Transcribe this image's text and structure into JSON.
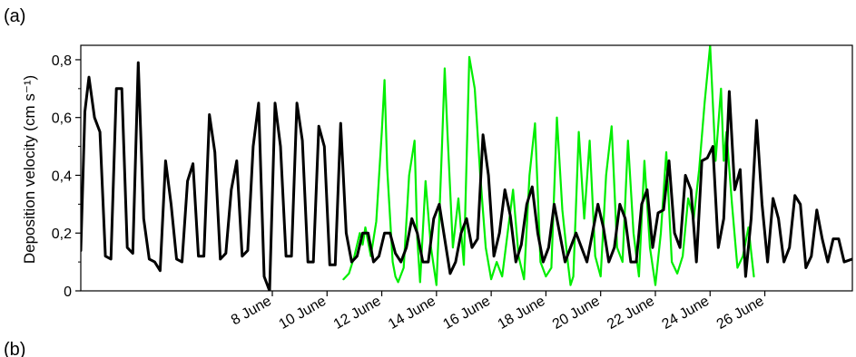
{
  "panel_labels": {
    "top": "(a)",
    "bottom": "(b)"
  },
  "chart_data": {
    "type": "line",
    "ylabel": "Deposition velocity (cm s⁻¹)",
    "ylim": [
      0,
      0.85
    ],
    "yticks": [
      {
        "value": 0.0,
        "label": "0"
      },
      {
        "value": 0.2,
        "label": "0,2"
      },
      {
        "value": 0.4,
        "label": "0,4"
      },
      {
        "value": 0.6,
        "label": "0,6"
      },
      {
        "value": 0.8,
        "label": "0,8"
      }
    ],
    "x_unit": "June (day of month)",
    "xlim": [
      1,
      29.2
    ],
    "xticks": [
      {
        "value": 8,
        "label": "8 June"
      },
      {
        "value": 10,
        "label": "10 June"
      },
      {
        "value": 12,
        "label": "12 June"
      },
      {
        "value": 14,
        "label": "14 June"
      },
      {
        "value": 16,
        "label": "16 June"
      },
      {
        "value": 18,
        "label": "18 June"
      },
      {
        "value": 20,
        "label": "20 June"
      },
      {
        "value": 22,
        "label": "22 June"
      },
      {
        "value": 24,
        "label": "24 June"
      },
      {
        "value": 26,
        "label": "26 June"
      }
    ],
    "grid": false,
    "legend": "none",
    "series": [
      {
        "color": "#00ee00",
        "x": [
          10.6,
          10.8,
          11.0,
          11.2,
          11.3,
          11.4,
          11.6,
          11.8,
          12.0,
          12.1,
          12.2,
          12.4,
          12.5,
          12.6,
          12.8,
          13.0,
          13.2,
          13.3,
          13.4,
          13.6,
          13.8,
          14.0,
          14.1,
          14.2,
          14.3,
          14.4,
          14.6,
          14.8,
          15.0,
          15.2,
          15.4,
          15.6,
          15.8,
          16.0,
          16.2,
          16.4,
          16.6,
          16.8,
          17.0,
          17.2,
          17.4,
          17.6,
          17.8,
          18.0,
          18.2,
          18.4,
          18.6,
          18.8,
          18.9,
          19.0,
          19.2,
          19.4,
          19.6,
          19.8,
          20.0,
          20.2,
          20.4,
          20.6,
          20.8,
          21.0,
          21.2,
          21.4,
          21.6,
          21.8,
          22.0,
          22.2,
          22.4,
          22.6,
          22.8,
          23.0,
          23.2,
          23.4,
          23.6,
          23.8,
          24.0,
          24.2,
          24.4,
          24.5,
          24.6,
          24.8,
          25.0,
          25.2,
          25.4,
          25.6
        ],
        "y": [
          0.04,
          0.06,
          0.12,
          0.2,
          0.16,
          0.22,
          0.12,
          0.24,
          0.55,
          0.73,
          0.42,
          0.1,
          0.05,
          0.03,
          0.08,
          0.4,
          0.52,
          0.18,
          0.03,
          0.38,
          0.15,
          0.02,
          0.25,
          0.5,
          0.77,
          0.55,
          0.15,
          0.32,
          0.09,
          0.81,
          0.7,
          0.4,
          0.15,
          0.04,
          0.1,
          0.05,
          0.2,
          0.35,
          0.12,
          0.04,
          0.4,
          0.58,
          0.1,
          0.05,
          0.08,
          0.6,
          0.28,
          0.1,
          0.02,
          0.05,
          0.55,
          0.25,
          0.52,
          0.12,
          0.05,
          0.4,
          0.57,
          0.15,
          0.1,
          0.52,
          0.2,
          0.05,
          0.45,
          0.15,
          0.02,
          0.2,
          0.48,
          0.1,
          0.06,
          0.12,
          0.32,
          0.25,
          0.42,
          0.65,
          0.85,
          0.45,
          0.7,
          0.45,
          0.55,
          0.3,
          0.08,
          0.12,
          0.22,
          0.05
        ]
      },
      {
        "color": "#000000",
        "x": [
          1.0,
          1.15,
          1.3,
          1.5,
          1.7,
          1.9,
          2.1,
          2.3,
          2.5,
          2.7,
          2.9,
          3.1,
          3.3,
          3.5,
          3.7,
          3.9,
          4.1,
          4.3,
          4.5,
          4.7,
          4.9,
          5.1,
          5.3,
          5.5,
          5.7,
          5.9,
          6.1,
          6.3,
          6.5,
          6.7,
          6.9,
          7.1,
          7.3,
          7.5,
          7.7,
          7.9,
          8.1,
          8.3,
          8.5,
          8.7,
          8.9,
          9.1,
          9.3,
          9.5,
          9.7,
          9.9,
          10.1,
          10.3,
          10.5,
          10.7,
          10.9,
          11.1,
          11.3,
          11.5,
          11.7,
          11.9,
          12.1,
          12.3,
          12.5,
          12.7,
          12.9,
          13.1,
          13.3,
          13.5,
          13.7,
          13.9,
          14.1,
          14.3,
          14.5,
          14.7,
          14.9,
          15.1,
          15.3,
          15.5,
          15.7,
          15.9,
          16.1,
          16.3,
          16.5,
          16.7,
          16.9,
          17.1,
          17.3,
          17.5,
          17.7,
          17.9,
          18.1,
          18.3,
          18.5,
          18.7,
          18.9,
          19.1,
          19.3,
          19.5,
          19.7,
          19.9,
          20.1,
          20.3,
          20.5,
          20.7,
          20.9,
          21.1,
          21.3,
          21.5,
          21.7,
          21.9,
          22.1,
          22.3,
          22.5,
          22.7,
          22.9,
          23.1,
          23.3,
          23.5,
          23.7,
          23.9,
          24.1,
          24.3,
          24.5,
          24.7,
          24.9,
          25.1,
          25.3,
          25.5,
          25.7,
          25.9,
          26.1,
          26.3,
          26.5,
          26.7,
          26.9,
          27.1,
          27.3,
          27.5,
          27.7,
          27.9,
          28.1,
          28.3,
          28.5,
          28.7,
          28.9,
          29.2
        ],
        "y": [
          0.14,
          0.62,
          0.74,
          0.6,
          0.55,
          0.12,
          0.11,
          0.7,
          0.7,
          0.15,
          0.13,
          0.79,
          0.25,
          0.11,
          0.1,
          0.07,
          0.45,
          0.3,
          0.11,
          0.1,
          0.38,
          0.44,
          0.12,
          0.12,
          0.61,
          0.48,
          0.11,
          0.13,
          0.35,
          0.45,
          0.12,
          0.14,
          0.5,
          0.65,
          0.05,
          0.0,
          0.65,
          0.5,
          0.12,
          0.12,
          0.65,
          0.52,
          0.1,
          0.1,
          0.57,
          0.5,
          0.09,
          0.09,
          0.58,
          0.2,
          0.1,
          0.12,
          0.2,
          0.2,
          0.1,
          0.12,
          0.2,
          0.2,
          0.13,
          0.1,
          0.15,
          0.25,
          0.2,
          0.1,
          0.1,
          0.25,
          0.3,
          0.18,
          0.06,
          0.1,
          0.2,
          0.25,
          0.15,
          0.18,
          0.54,
          0.4,
          0.12,
          0.2,
          0.35,
          0.26,
          0.1,
          0.16,
          0.3,
          0.36,
          0.2,
          0.1,
          0.15,
          0.3,
          0.2,
          0.1,
          0.15,
          0.2,
          0.15,
          0.1,
          0.2,
          0.3,
          0.22,
          0.1,
          0.15,
          0.3,
          0.25,
          0.1,
          0.1,
          0.3,
          0.35,
          0.15,
          0.27,
          0.28,
          0.45,
          0.2,
          0.15,
          0.4,
          0.35,
          0.1,
          0.45,
          0.46,
          0.5,
          0.15,
          0.25,
          0.69,
          0.35,
          0.42,
          0.05,
          0.25,
          0.59,
          0.3,
          0.1,
          0.32,
          0.25,
          0.1,
          0.15,
          0.33,
          0.3,
          0.08,
          0.12,
          0.28,
          0.18,
          0.1,
          0.18,
          0.18,
          0.1,
          0.11
        ]
      }
    ]
  }
}
